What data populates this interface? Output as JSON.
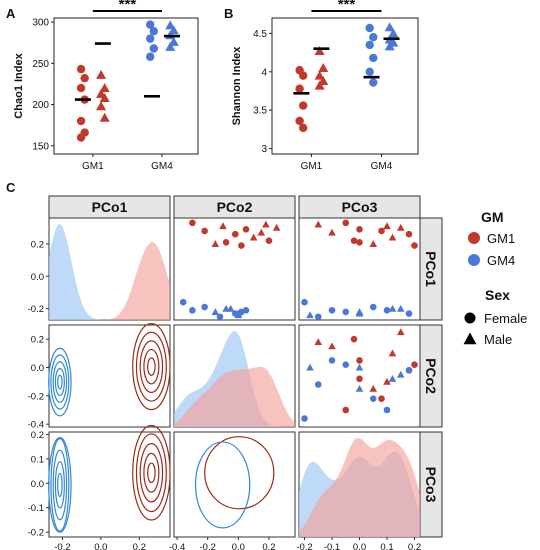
{
  "chart_data": [
    {
      "panel": "A",
      "type": "scatter",
      "ylabel": "Chao1 Index",
      "categories": [
        "GM1",
        "GM4"
      ],
      "yticks": [
        150,
        200,
        250,
        300
      ],
      "ylim": [
        140,
        305
      ],
      "significance": "***",
      "means": [
        206,
        274,
        210,
        283
      ],
      "points": {
        "GM1": {
          "female": [
            243,
            232,
            220,
            206,
            180,
            166,
            160
          ],
          "male": [
            236,
            220,
            213,
            208,
            198,
            184
          ]
        },
        "GM4": {
          "female": [
            297,
            289,
            280,
            268,
            258
          ],
          "male": [
            296,
            290,
            284,
            276,
            270
          ]
        }
      }
    },
    {
      "panel": "B",
      "type": "scatter",
      "ylabel": "Shannon Index",
      "categories": [
        "GM1",
        "GM4"
      ],
      "yticks": [
        3.0,
        3.5,
        4.0,
        4.5
      ],
      "ylim": [
        2.93,
        4.7
      ],
      "significance": "***",
      "means": [
        3.72,
        4.3,
        3.93,
        4.43
      ],
      "points": {
        "GM1": {
          "female": [
            4.02,
            3.95,
            3.78,
            3.56,
            3.36,
            3.27
          ],
          "male": [
            4.27,
            4.05,
            3.95,
            3.88,
            3.82
          ]
        },
        "GM4": {
          "female": [
            4.57,
            4.45,
            4.35,
            4.18,
            4.0,
            3.86
          ],
          "male": [
            4.58,
            4.5,
            4.42,
            4.38,
            4.33
          ]
        }
      }
    },
    {
      "panel": "C",
      "type": "scatter",
      "columns": [
        "PCo1",
        "PCo2",
        "PCo3"
      ],
      "rows": [
        "PCo1",
        "PCo2",
        "PCo3"
      ],
      "x_ticks": {
        "PCo1": [
          "-0.2",
          "0.0",
          "0.2"
        ],
        "PCo2": [
          "-0.4",
          "-0.2",
          "0.0",
          "0.2"
        ],
        "PCo3": [
          "-0.2",
          "-0.1",
          "0.0",
          "0.1",
          "0.2"
        ]
      },
      "y_ticks": {
        "PCo1": [
          "0.2",
          "0.0",
          "-0.2"
        ],
        "PCo2": [
          "0.2",
          "0.0",
          "-0.2",
          "-0.4"
        ],
        "PCo3": [
          "0.2",
          "0.1",
          "0.0",
          "-0.1",
          "-0.2"
        ]
      },
      "scores": {
        "GM1": {
          "pco1": [
            0.33,
            0.31,
            0.3,
            0.29,
            0.28,
            0.27,
            0.26,
            0.24,
            0.22,
            0.2,
            0.19,
            0.32,
            0.21
          ],
          "pco2": [
            -0.3,
            -0.1,
            0.25,
            0.05,
            -0.22,
            0.15,
            -0.02,
            0.1,
            0.2,
            -0.15,
            0.02,
            0.18,
            -0.08
          ],
          "pco3": [
            -0.05,
            0.1,
            0.15,
            0.0,
            0.08,
            -0.1,
            0.18,
            0.12,
            -0.02,
            0.05,
            0.2,
            -0.15,
            0.0
          ],
          "sex": [
            "F",
            "M",
            "M",
            "F",
            "F",
            "M",
            "F",
            "M",
            "F",
            "M",
            "F",
            "M",
            "F"
          ]
        },
        "GM4": {
          "pco1": [
            -0.16,
            -0.19,
            -0.2,
            -0.21,
            -0.22,
            -0.23,
            -0.24,
            -0.21,
            -0.22,
            -0.2,
            -0.23,
            -0.25
          ],
          "pco2": [
            -0.36,
            -0.22,
            -0.05,
            0.05,
            -0.15,
            -0.02,
            0.0,
            -0.3,
            0.02,
            -0.08,
            0.0,
            -0.12
          ],
          "pco3": [
            -0.2,
            0.05,
            0.15,
            -0.1,
            0.0,
            0.18,
            -0.18,
            0.1,
            -0.05,
            0.12,
            0.0,
            -0.15
          ],
          "sex": [
            "F",
            "F",
            "M",
            "F",
            "M",
            "F",
            "M",
            "F",
            "F",
            "M",
            "M",
            "F"
          ]
        }
      }
    }
  ],
  "panel_letters": [
    "A",
    "B",
    "C"
  ],
  "legend": {
    "gm_title": "GM",
    "gm_items": [
      {
        "label": "GM1",
        "color": "#c0392b"
      },
      {
        "label": "GM4",
        "color": "#4a78d6"
      }
    ],
    "sex_title": "Sex",
    "sex_items": [
      {
        "label": "Female",
        "shape": "circle"
      },
      {
        "label": "Male",
        "shape": "triangle"
      }
    ]
  },
  "colors": {
    "gm1": "#c0392b",
    "gm4": "#4a78d6",
    "gm1_fill": "#f4a19c",
    "gm4_fill": "#a9cdf5",
    "gm1_line": "#9b2a18",
    "gm4_line": "#2f87d8",
    "strip": "#e6e6e6"
  }
}
